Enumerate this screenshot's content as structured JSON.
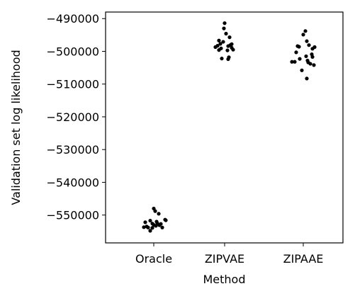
{
  "chart_data": {
    "type": "scatter",
    "categories": [
      "Oracle",
      "ZIPVAE",
      "ZIPAAE"
    ],
    "xlabel": "Method",
    "ylabel": "Validation set log likelihood",
    "ylim": [
      -558500,
      -488000
    ],
    "yticks": [
      -490000,
      -500000,
      -510000,
      -520000,
      -530000,
      -540000,
      -550000
    ],
    "ytick_labels": [
      "−490000",
      "−500000",
      "−510000",
      "−520000",
      "−530000",
      "−540000",
      "−550000"
    ],
    "grid": false,
    "point_color": "#000000",
    "series": [
      {
        "category": "Oracle",
        "points": [
          [
            -0.12,
            -552200
          ],
          [
            -0.08,
            -553800
          ],
          [
            -0.14,
            -553700
          ],
          [
            -0.05,
            -554800
          ],
          [
            -0.02,
            -552600
          ],
          [
            0.03,
            -553300
          ],
          [
            0.0,
            -548000
          ],
          [
            0.02,
            -548800
          ],
          [
            0.07,
            -549600
          ],
          [
            0.05,
            -552500
          ],
          [
            -0.05,
            -551700
          ],
          [
            0.1,
            -552700
          ],
          [
            0.12,
            -553800
          ],
          [
            0.16,
            -551400
          ],
          [
            0.17,
            -551600
          ],
          [
            0.04,
            -552000
          ],
          [
            -0.1,
            -553500
          ],
          [
            0.0,
            -553000
          ],
          [
            0.08,
            -553100
          ],
          [
            -0.02,
            -553900
          ]
        ]
      },
      {
        "category": "ZIPVAE",
        "points": [
          [
            -0.1,
            -498300
          ],
          [
            -0.13,
            -498700
          ],
          [
            -0.08,
            -496700
          ],
          [
            -0.06,
            -497700
          ],
          [
            -0.02,
            -497100
          ],
          [
            -0.05,
            -499100
          ],
          [
            -0.08,
            -499600
          ],
          [
            -0.04,
            -502200
          ],
          [
            0.0,
            -491400
          ],
          [
            -0.01,
            -493000
          ],
          [
            0.02,
            -494600
          ],
          [
            0.05,
            -498400
          ],
          [
            0.07,
            -495700
          ],
          [
            0.04,
            -499700
          ],
          [
            0.05,
            -502400
          ],
          [
            0.06,
            -501800
          ],
          [
            0.08,
            -498100
          ],
          [
            0.1,
            -498900
          ],
          [
            0.12,
            -499500
          ],
          [
            0.1,
            -497800
          ]
        ]
      },
      {
        "category": "ZIPAAE",
        "points": [
          [
            -0.16,
            -503200
          ],
          [
            -0.12,
            -503200
          ],
          [
            -0.1,
            -500300
          ],
          [
            -0.08,
            -498400
          ],
          [
            -0.06,
            -498600
          ],
          [
            -0.05,
            -502300
          ],
          [
            -0.02,
            -505800
          ],
          [
            0.0,
            -494900
          ],
          [
            0.03,
            -493800
          ],
          [
            0.04,
            -501500
          ],
          [
            0.05,
            -496900
          ],
          [
            0.07,
            -503400
          ],
          [
            0.08,
            -498100
          ],
          [
            0.1,
            -503800
          ],
          [
            0.13,
            -499200
          ],
          [
            0.12,
            -500900
          ],
          [
            0.13,
            -501700
          ],
          [
            0.16,
            -498700
          ],
          [
            0.15,
            -504200
          ],
          [
            0.05,
            -508300
          ],
          [
            0.06,
            -502800
          ]
        ]
      }
    ]
  }
}
